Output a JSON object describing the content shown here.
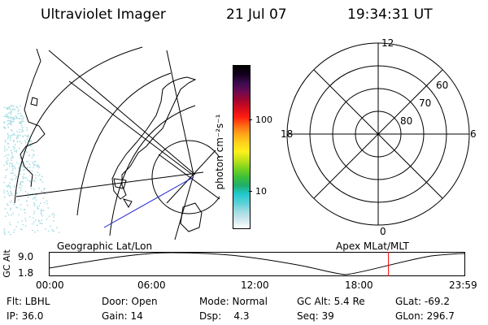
{
  "header": {
    "instrument": "Ultraviolet Imager",
    "date": "21 Jul 07",
    "time": "19:34:31 UT"
  },
  "colorbar": {
    "unit_label": "photon cm⁻²s⁻¹",
    "tick_labels": [
      "100",
      "10"
    ],
    "colors": [
      "#ffffff",
      "#cfe8ee",
      "#a0dbe2",
      "#57d0d6",
      "#22c9d0",
      "#1eae6a",
      "#3ec03a",
      "#7ad21e",
      "#c2e21a",
      "#fff01c",
      "#ffd11a",
      "#ffa51a",
      "#ff6a14",
      "#ff1e10",
      "#d40c1c",
      "#a0062e",
      "#6a0a52",
      "#3a0c4e",
      "#14001e",
      "#000000"
    ]
  },
  "polar_plot": {
    "mlt_labels": {
      "top": "12",
      "left": "18",
      "right": "6",
      "bottom": "0"
    },
    "lat_labels": [
      "60",
      "70",
      "80"
    ]
  },
  "panel_labels": {
    "left": "Geographic Lat/Lon",
    "right": "Apex MLat/MLT"
  },
  "altitude_plot": {
    "y_axis_label": "GC Alt",
    "y_ticks": [
      "9.0",
      "1.8"
    ],
    "x_ticks": [
      "00:00",
      "06:00",
      "12:00",
      "18:00",
      "23:59"
    ],
    "current_time_marker_hour": 19.575,
    "marker_color": "#ff0000"
  },
  "status": {
    "filter": "Flt: LBHL",
    "ip": "IP: 36.0",
    "door": "Door: Open",
    "gain": "Gain: 14",
    "mode": "Mode: Normal",
    "dsp": "Dsp:    4.3",
    "gc_alt": "GC Alt: 5.4 Re",
    "seq": "Seq: 39",
    "glat": "GLat: -69.2",
    "glon": "GLon: 296.7"
  }
}
